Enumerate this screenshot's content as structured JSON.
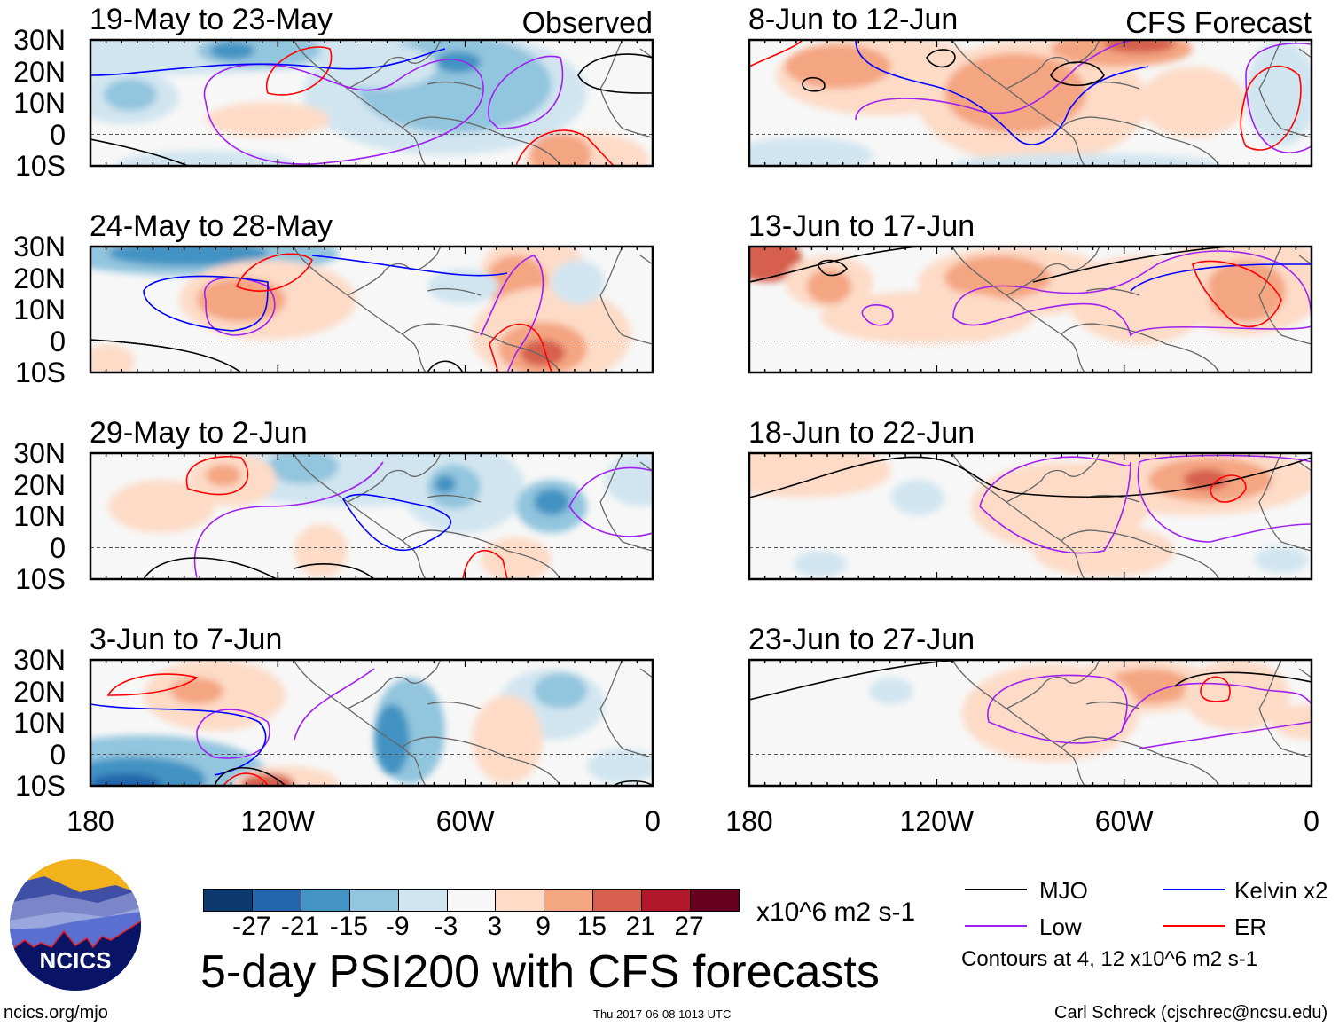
{
  "panels_left": [
    {
      "title": "19-May to 23-May",
      "tag": "Observed"
    },
    {
      "title": "24-May to 28-May"
    },
    {
      "title": "29-May to 2-Jun"
    },
    {
      "title": "3-Jun to 7-Jun"
    }
  ],
  "panels_right": [
    {
      "title": "8-Jun to 12-Jun",
      "tag": "CFS Forecast"
    },
    {
      "title": "13-Jun to 17-Jun"
    },
    {
      "title": "18-Jun to 22-Jun"
    },
    {
      "title": "23-Jun to 27-Jun"
    }
  ],
  "chart_data": {
    "type": "heatmap",
    "title": "5-day PSI200 with CFS forecasts",
    "ylabel_ticks": [
      "30N",
      "20N",
      "10N",
      "0",
      "10S"
    ],
    "xlabel_ticks": [
      "180",
      "120W",
      "60W",
      "0"
    ],
    "ylim": [
      -10,
      30
    ],
    "xlim": [
      180,
      0
    ],
    "colorbar": {
      "labels": [
        "-27",
        "-21",
        "-15",
        "-9",
        "-3",
        "3",
        "9",
        "15",
        "21",
        "27"
      ],
      "colors": [
        "#0d3a6e",
        "#2166ac",
        "#4393c3",
        "#92c5de",
        "#d1e5f0",
        "#f7f7f7",
        "#fddbc7",
        "#f4a582",
        "#d6604d",
        "#b2182b",
        "#67001f"
      ],
      "units": "x10^6 m2 s-1"
    },
    "legend": [
      {
        "name": "MJO",
        "color": "#000000"
      },
      {
        "name": "Kelvin x2",
        "color": "#0000ff"
      },
      {
        "name": "Low",
        "color": "#a020f0"
      },
      {
        "name": "ER",
        "color": "#ff0000"
      }
    ],
    "contour_note": "Contours at 4, 12 x10^6 m2 s-1"
  },
  "footer": {
    "logo_text": "NCICS",
    "url": "ncics.org/mjo",
    "timestamp": "Thu 2017-06-08 1013 UTC",
    "credit": "Carl Schreck (cjschrec@ncsu.edu)"
  }
}
